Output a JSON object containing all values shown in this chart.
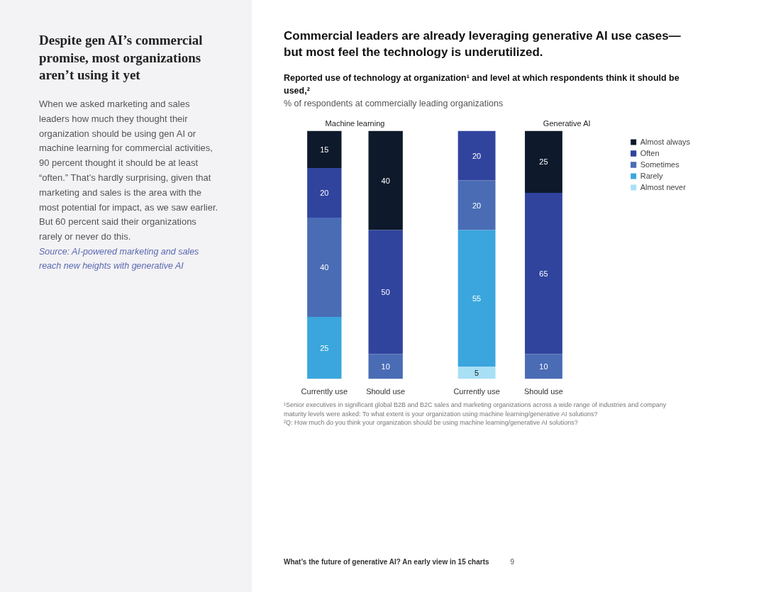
{
  "chart_data": [
    {
      "type": "other",
      "title": "Despite gen AI’s commercial promise, most organizations aren’t using it yet",
      "annotations": [
        "When we asked marketing and sales leaders how much they thought their organization should be using gen AI or machine learning for commercial activities, 90 percent thought it should be at least “often.” That’s hardly surprising, given that marketing and sales is the area with the most potential for impact, as we saw earlier. But 60 percent said their organizations rarely or never do this.",
        "Source: AI-powered marketing and sales reach new heights with generative AI"
      ]
    },
    {
      "type": "other",
      "title": "Commercial leaders are already leveraging generative AI use cases—but most feel the technology is underutilized.",
      "subtitle": "Reported use of technology at organization¹ and level at which respondents think it should be used,²",
      "annotations": [
        "% of respondents at commercially leading organizations",
        "¹Senior executives in significant global B2B and B2C sales and marketing organizations across a wide range of industries and company maturity levels were asked: To what extent is your organization using machine learning/generative AI solutions?",
        "²Q: How much do you think your organization should be using machine learning/generative AI solutions?",
        "What’s the future of generative AI? An early view in 15 charts",
        "9"
      ]
    },
    {
      "type": "bar",
      "title": "Machine learning",
      "stacked": true,
      "data_labels": true,
      "grid": false,
      "tick_labels": "x",
      "categories": [
        "Currently use",
        "Should use"
      ],
      "series": [
        {
          "color": "#3aa6dd",
          "values": [
            25,
            null
          ]
        },
        {
          "color": "#4a6cb5",
          "values": [
            40,
            10
          ]
        },
        {
          "color": "#30449e",
          "values": [
            20,
            50
          ]
        },
        {
          "color": "#0e1a2b",
          "values": [
            15,
            40
          ]
        }
      ]
    },
    {
      "type": "bar",
      "title": "Generative AI",
      "stacked": true,
      "data_labels": true,
      "grid": false,
      "tick_labels": "x",
      "legend": "right",
      "categories": [
        "Currently use",
        "Should use"
      ],
      "series": [
        {
          "name": "Almost never",
          "color": "#a8e0f5",
          "values": [
            5,
            null
          ]
        },
        {
          "name": "Rarely",
          "color": "#3aa6dd",
          "values": [
            55,
            null
          ]
        },
        {
          "name": "Sometimes",
          "color": "#4a6cb5",
          "values": [
            20,
            10
          ]
        },
        {
          "name": "Often",
          "color": "#30449e",
          "values": [
            20,
            65
          ]
        },
        {
          "name": "Almost always",
          "color": "#0e1a2b",
          "values": [
            null,
            25
          ]
        }
      ]
    }
  ]
}
